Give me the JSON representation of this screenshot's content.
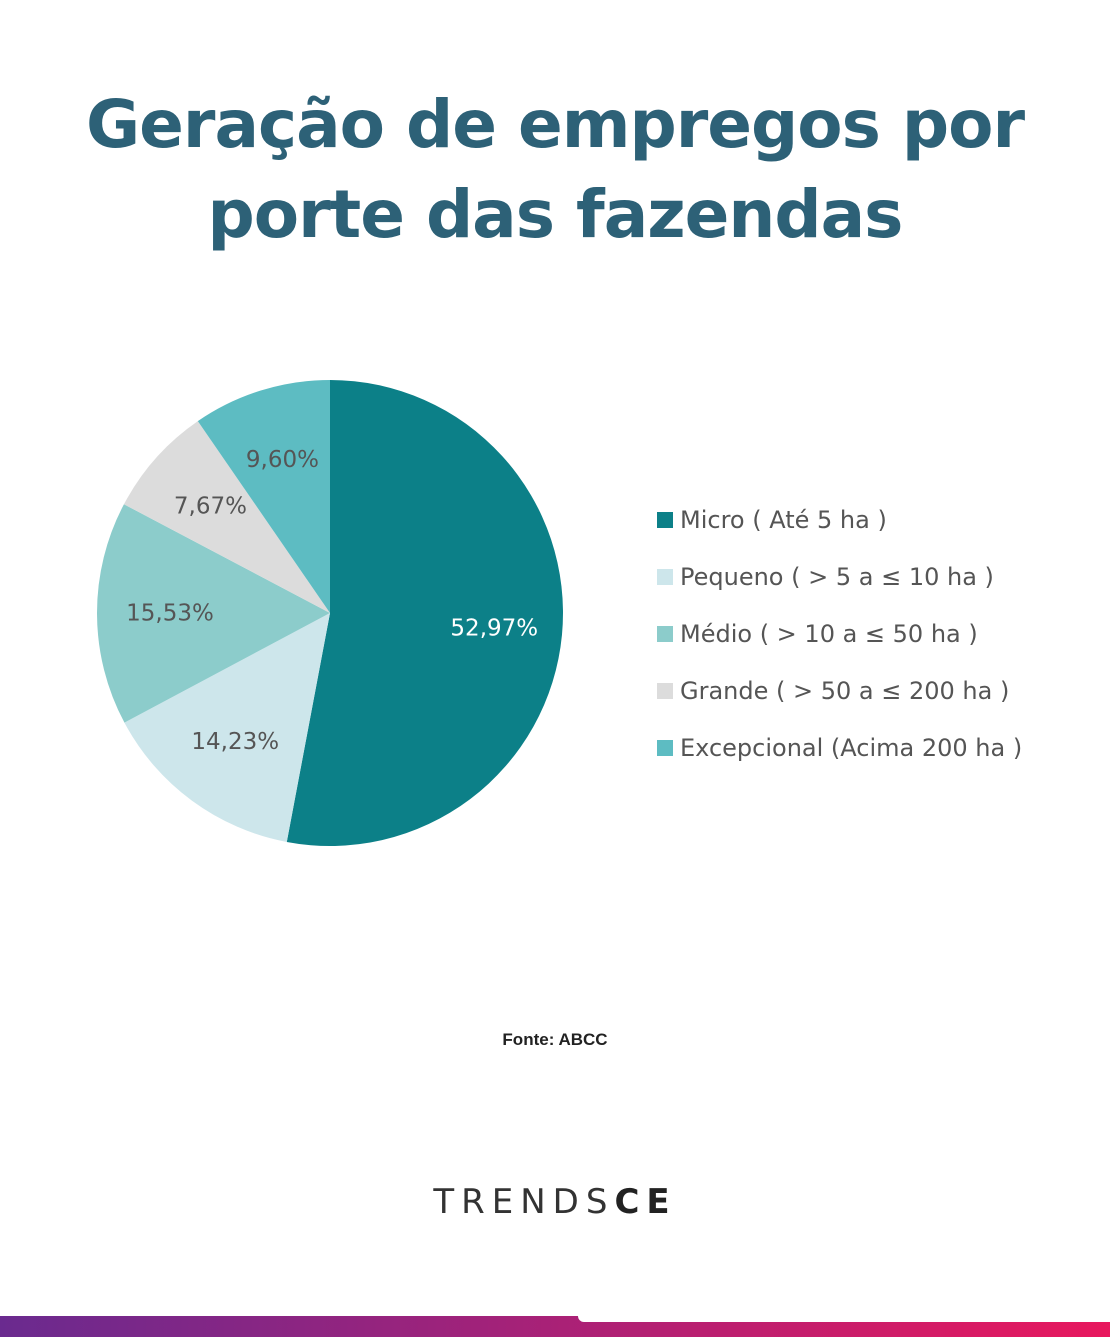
{
  "title": {
    "line1": "Geração de empregos por",
    "line2": "porte das fazendas"
  },
  "chart_data": {
    "type": "pie",
    "title": "Geração de empregos por porte das fazendas",
    "legend_position": "right",
    "slices": [
      {
        "label": "Micro ( Até 5 ha )",
        "value": 52.97,
        "display": "52,97%",
        "color": "#0c8088",
        "label_color": "#ffffff"
      },
      {
        "label": "Pequeno ( > 5 a ≤ 10 ha )",
        "value": 14.23,
        "display": "14,23%",
        "color": "#cde6eb",
        "label_color": "#555555"
      },
      {
        "label": "Médio ( > 10 a ≤ 50 ha )",
        "value": 15.53,
        "display": "15,53%",
        "color": "#8ccccb",
        "label_color": "#555555"
      },
      {
        "label": "Grande ( > 50 a ≤ 200 ha )",
        "value": 7.67,
        "display": "7,67%",
        "color": "#dcdcdc",
        "label_color": "#555555"
      },
      {
        "label": "Excepcional (Acima 200 ha )",
        "value": 9.6,
        "display": "9,60%",
        "color": "#5dbcc2",
        "label_color": "#555555"
      }
    ]
  },
  "source": "Fonte: ABCC",
  "logo": {
    "light": "TRENDS",
    "bold": "CE"
  },
  "bottom_bar": {
    "gradient_start": "#6a2a8f",
    "gradient_end": "#e8185e"
  }
}
